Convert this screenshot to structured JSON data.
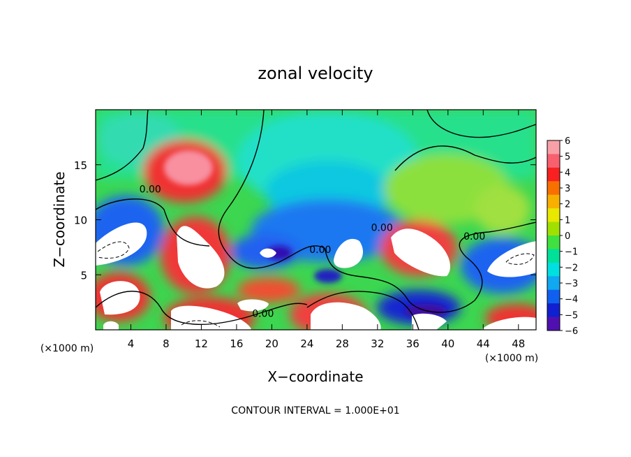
{
  "chart_data": {
    "type": "heatmap",
    "title": "zonal velocity",
    "xlabel": "X−coordinate",
    "ylabel": "Z−coordinate",
    "x_unit": "(×1000 m)",
    "z_unit": "(×1000 m)",
    "xlim": [
      0,
      50
    ],
    "zlim": [
      0,
      20
    ],
    "x_ticks": [
      4,
      8,
      12,
      16,
      20,
      24,
      28,
      32,
      36,
      40,
      44,
      48
    ],
    "z_ticks": [
      5,
      10,
      15
    ],
    "colorbar": {
      "ticks": [
        "6",
        "5",
        "4",
        "3",
        "2",
        "1",
        "0",
        "−1",
        "−2",
        "−3",
        "−4",
        "−5",
        "−6"
      ],
      "range": [
        -6,
        6
      ],
      "out_of_range_color": "#ffffff"
    },
    "contour_labels": [
      {
        "text": "0.00",
        "x": 6.2,
        "z": 12.8
      },
      {
        "text": "0.00",
        "x": 19.0,
        "z": 1.5
      },
      {
        "text": "0.00",
        "x": 25.5,
        "z": 7.3
      },
      {
        "text": "0.00",
        "x": 32.5,
        "z": 9.3
      },
      {
        "text": "0.00",
        "x": 43.0,
        "z": 8.5
      }
    ],
    "contour_interval_text": "CONTOUR INTERVAL = 1.000E+01"
  }
}
